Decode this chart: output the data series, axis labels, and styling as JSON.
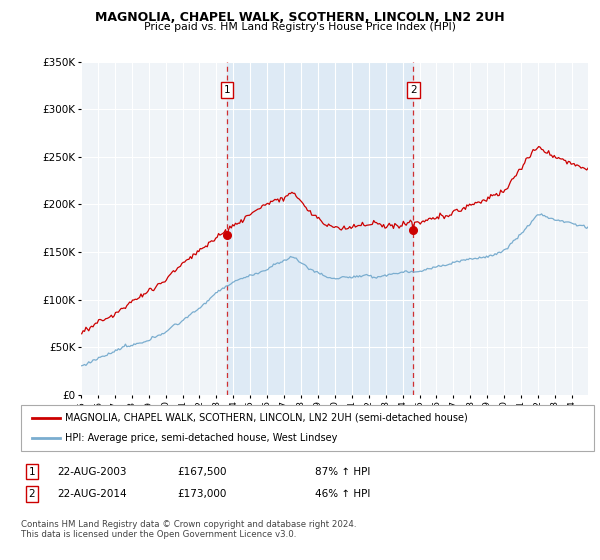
{
  "title": "MAGNOLIA, CHAPEL WALK, SCOTHERN, LINCOLN, LN2 2UH",
  "subtitle": "Price paid vs. HM Land Registry's House Price Index (HPI)",
  "sale1_date": "22-AUG-2003",
  "sale1_price": 167500,
  "sale1_label": "£167,500",
  "sale1_pct": "87% ↑ HPI",
  "sale2_date": "22-AUG-2014",
  "sale2_price": 173000,
  "sale2_label": "£173,000",
  "sale2_pct": "46% ↑ HPI",
  "legend_property": "MAGNOLIA, CHAPEL WALK, SCOTHERN, LINCOLN, LN2 2UH (semi-detached house)",
  "legend_hpi": "HPI: Average price, semi-detached house, West Lindsey",
  "footer": "Contains HM Land Registry data © Crown copyright and database right 2024.\nThis data is licensed under the Open Government Licence v3.0.",
  "property_color": "#cc0000",
  "hpi_color": "#7aadcf",
  "shade_color": "#deeaf5",
  "dashed_color": "#cc0000",
  "ylim_min": 0,
  "ylim_max": 350000,
  "yticks": [
    0,
    50000,
    100000,
    150000,
    200000,
    250000,
    300000,
    350000
  ],
  "ytick_labels": [
    "£0",
    "£50K",
    "£100K",
    "£150K",
    "£200K",
    "£250K",
    "£300K",
    "£350K"
  ],
  "background_color": "#ffffff",
  "plot_background": "#f0f4f8"
}
